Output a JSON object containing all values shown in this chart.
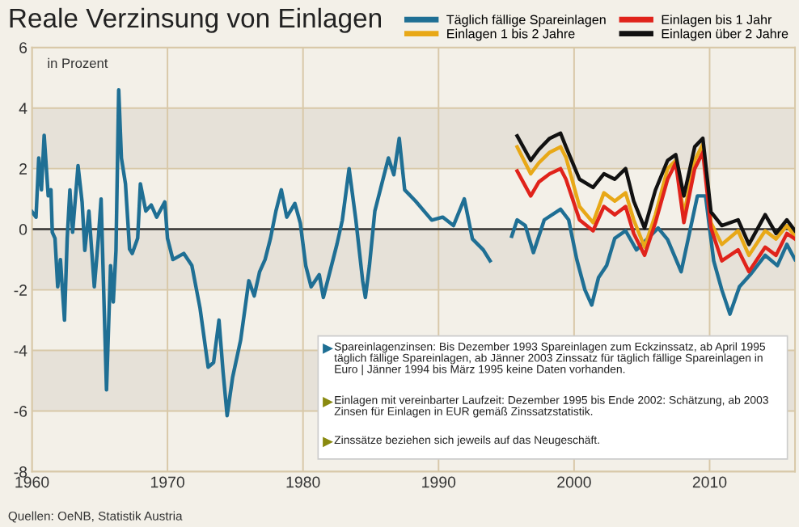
{
  "chart_data": {
    "type": "line",
    "title": "Reale Verzinsung von Einlagen",
    "ylabel": "in Prozent",
    "xlim": [
      1960,
      2016.3
    ],
    "xticks": [
      1960,
      1970,
      1980,
      1990,
      2000,
      2010
    ],
    "ylim": [
      -8,
      6
    ],
    "yticks": [
      -8,
      -6,
      -4,
      -2,
      0,
      2,
      4,
      6
    ],
    "grid": true,
    "legend": "top right",
    "line_style": "solid",
    "marker": "none",
    "ref_lines": [
      {
        "axis": "y",
        "value": 0,
        "color": "#333333"
      }
    ],
    "bands": [
      {
        "axis": "y",
        "from": 2,
        "to": 4,
        "color": "#e6e1d8"
      },
      {
        "axis": "y",
        "from": -2,
        "to": 0,
        "color": "#e6e1d8"
      },
      {
        "axis": "y",
        "from": -6,
        "to": -4,
        "color": "#e6e1d8"
      }
    ],
    "annotations": [
      "Spareinlagenzinsen: Bis Dezember 1993 Spareinlagen zum Eckzinssatz, ab April 1995\ntäglich fällige Spareinlagen, ab Jänner 2003 Zinssatz für täglich fällige Spareinlagen in\nEuro | Jänner 1994 bis März 1995 keine Daten vorhanden.",
      "Einlagen mit vereinbarter Laufzeit: Dezember 1995 bis Ende 2002: Schätzung, ab 2003\nZinsen für Einlagen in EUR gemäß Zinssatzstatistik.",
      "Zinssätze beziehen sich jeweils auf das Neugeschäft.",
      "Quellen: OeNB, Statistik Austria"
    ],
    "series": [
      {
        "name": "Täglich fällige Spareinlagen",
        "color": "#1f6f94",
        "x": [
          1960.0,
          1960.3,
          1960.5,
          1960.7,
          1960.9,
          1961.2,
          1961.4,
          1961.5,
          1961.7,
          1961.9,
          1962.1,
          1962.4,
          1962.6,
          1962.8,
          1963.0,
          1963.4,
          1963.7,
          1963.9,
          1964.2,
          1964.6,
          1964.9,
          1965.1,
          1965.5,
          1965.8,
          1966.0,
          1966.2,
          1966.4,
          1966.6,
          1966.9,
          1967.2,
          1967.4,
          1967.8,
          1968.0,
          1968.4,
          1968.8,
          1969.2,
          1969.8,
          1970.0,
          1970.4,
          1971.2,
          1971.8,
          1972.4,
          1973.0,
          1973.4,
          1973.8,
          1974.1,
          1974.4,
          1974.8,
          1975.4,
          1976.0,
          1976.4,
          1976.8,
          1977.2,
          1977.6,
          1978.0,
          1978.4,
          1978.8,
          1979.4,
          1979.8,
          1980.2,
          1980.6,
          1981.2,
          1981.5,
          1982.1,
          1982.5,
          1982.9,
          1983.4,
          1983.9,
          1984.4,
          1984.6,
          1984.9,
          1985.3,
          1985.7,
          1986.3,
          1986.7,
          1987.1,
          1987.5,
          1988.3,
          1989.5,
          1990.3,
          1991.1,
          1991.9,
          1992.5,
          1993.3,
          1993.8,
          1994.5,
          1995.4,
          1995.8,
          1996.4,
          1997.0,
          1997.8,
          1999.0,
          1999.6,
          2000.2,
          2000.8,
          2001.3,
          2001.8,
          2002.4,
          2003.0,
          2003.8,
          2004.6,
          2006.2,
          2006.9,
          2007.9,
          2009.1,
          2009.7,
          2010.3,
          2010.9,
          2011.5,
          2012.2,
          2013.0,
          2014.1,
          2015.0,
          2015.7,
          2016.3
        ],
        "values": [
          0.58,
          0.4,
          2.35,
          1.3,
          3.1,
          1.1,
          1.3,
          -0.1,
          -0.3,
          -1.9,
          -1.0,
          -3.0,
          -0.3,
          1.3,
          -0.1,
          2.1,
          0.9,
          -0.7,
          0.6,
          -1.9,
          -0.3,
          1.0,
          -5.3,
          -1.2,
          -2.4,
          -0.7,
          4.6,
          2.35,
          1.5,
          -0.65,
          -0.8,
          -0.3,
          1.5,
          0.6,
          0.8,
          0.4,
          0.9,
          -0.3,
          -1.0,
          -0.8,
          -1.2,
          -2.6,
          -4.55,
          -4.4,
          -3.0,
          -4.7,
          -6.15,
          -4.9,
          -3.65,
          -1.7,
          -2.2,
          -1.4,
          -1.0,
          -0.3,
          0.6,
          1.3,
          0.4,
          0.85,
          0.2,
          -1.2,
          -1.9,
          -1.5,
          -2.25,
          -1.2,
          -0.5,
          0.3,
          2.0,
          0.3,
          -1.7,
          -2.25,
          -1.2,
          0.6,
          1.3,
          2.35,
          1.8,
          3.0,
          1.3,
          0.93,
          0.3,
          0.4,
          0.12,
          1.0,
          -0.32,
          -0.68,
          -1.04,
          null,
          -0.23,
          0.31,
          0.12,
          -0.77,
          0.31,
          0.66,
          0.31,
          -1.0,
          -2.0,
          -2.5,
          -1.6,
          -1.2,
          -0.3,
          -0.05,
          -0.68,
          0.04,
          -0.34,
          -1.4,
          1.1,
          1.1,
          -1.04,
          -2.0,
          -2.8,
          -1.9,
          -1.5,
          -0.86,
          -1.2,
          -0.5,
          -1.0
        ]
      },
      {
        "name": "Einlagen 1 bis 2 Jahre",
        "color": "#e8a817",
        "x": [
          1995.8,
          1996.8,
          1997.4,
          1998.2,
          1999.0,
          1999.4,
          2000.4,
          2001.4,
          2002.2,
          2003.0,
          2003.8,
          2004.4,
          2005.2,
          2006.0,
          2006.9,
          2007.5,
          2008.1,
          2008.9,
          2009.5,
          2010.1,
          2010.9,
          2012.1,
          2012.9,
          2014.1,
          2014.9,
          2015.7,
          2016.3
        ],
        "values": [
          2.72,
          1.83,
          2.19,
          2.54,
          2.72,
          2.37,
          0.75,
          0.22,
          1.2,
          0.93,
          1.2,
          0.31,
          -0.59,
          0.48,
          2.0,
          2.27,
          0.48,
          2.27,
          2.81,
          0.22,
          -0.5,
          -0.05,
          -0.86,
          -0.05,
          -0.32,
          0.12,
          -0.23
        ]
      },
      {
        "name": "Einlagen bis 1 Jahr",
        "color": "#e0231b",
        "x": [
          1995.8,
          1996.8,
          1997.4,
          1998.2,
          1999.0,
          1999.4,
          2000.4,
          2001.4,
          2002.2,
          2003.0,
          2003.8,
          2004.4,
          2005.2,
          2006.0,
          2006.9,
          2007.5,
          2008.1,
          2008.9,
          2009.5,
          2010.1,
          2010.9,
          2012.1,
          2012.9,
          2014.1,
          2014.9,
          2015.7,
          2016.3
        ],
        "values": [
          1.92,
          1.1,
          1.56,
          1.83,
          2.0,
          1.65,
          0.31,
          -0.05,
          0.75,
          0.48,
          0.75,
          -0.14,
          -0.86,
          0.22,
          1.65,
          2.19,
          0.22,
          2.0,
          2.54,
          0.04,
          -1.04,
          -0.68,
          -1.4,
          -0.59,
          -0.86,
          -0.14,
          -0.32
        ]
      },
      {
        "name": "Einlagen über 2 Jahre",
        "color": "#111111",
        "x": [
          1995.8,
          1996.8,
          1997.4,
          1998.2,
          1999.0,
          1999.4,
          2000.4,
          2001.4,
          2002.2,
          2003.0,
          2003.8,
          2004.4,
          2005.2,
          2006.0,
          2006.9,
          2007.5,
          2008.1,
          2008.9,
          2009.5,
          2010.1,
          2010.9,
          2012.1,
          2012.9,
          2014.1,
          2014.9,
          2015.7,
          2016.3
        ],
        "values": [
          3.08,
          2.27,
          2.63,
          3.0,
          3.17,
          2.72,
          1.65,
          1.38,
          1.83,
          1.65,
          2.0,
          0.93,
          0.04,
          1.29,
          2.27,
          2.46,
          1.1,
          2.72,
          3.0,
          0.57,
          0.12,
          0.31,
          -0.5,
          0.48,
          -0.14,
          0.31,
          -0.05
        ]
      }
    ]
  }
}
